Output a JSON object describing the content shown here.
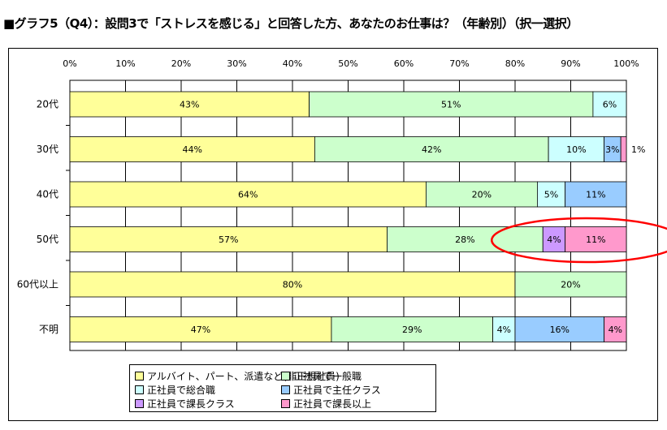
{
  "title": "■グラフ5（Q4）：設問3で「ストレスを感じる」と回答した方、あなたのお仕事は？（年齢別）（択一選択）",
  "chart_data": {
    "type": "bar",
    "orientation": "horizontal",
    "stacked": "percent",
    "categories": [
      "20代",
      "30代",
      "40代",
      "50代",
      "60代以上",
      "不明"
    ],
    "x_ticks": [
      "0%",
      "10%",
      "20%",
      "30%",
      "40%",
      "50%",
      "60%",
      "70%",
      "80%",
      "90%",
      "100%"
    ],
    "xlim": [
      0,
      100
    ],
    "series": [
      {
        "name": "アルバイト、パート、派遣など(非正規社員)",
        "color": "#ffff99",
        "values": [
          43,
          44,
          64,
          57,
          80,
          47
        ],
        "labels": [
          "43%",
          "44%",
          "64%",
          "57%",
          "80%",
          "47%"
        ]
      },
      {
        "name": "正社員で一般職",
        "color": "#ccffcc",
        "values": [
          51,
          42,
          20,
          28,
          20,
          29
        ],
        "labels": [
          "51%",
          "42%",
          "20%",
          "28%",
          "20%",
          "29%"
        ]
      },
      {
        "name": "正社員で総合職",
        "color": "#ccffff",
        "values": [
          6,
          10,
          5,
          0,
          0,
          4
        ],
        "labels": [
          "6%",
          "10%",
          "5%",
          "",
          "",
          "4%"
        ]
      },
      {
        "name": "正社員で主任クラス",
        "color": "#99ccff",
        "values": [
          0,
          3,
          11,
          0,
          0,
          16
        ],
        "labels": [
          "",
          "3%",
          "11%",
          "",
          "",
          "16%"
        ]
      },
      {
        "name": "正社員で課長クラス",
        "color": "#cc99ff",
        "values": [
          0,
          0,
          0,
          4,
          0,
          0
        ],
        "labels": [
          "",
          "",
          "",
          "4%",
          "",
          ""
        ]
      },
      {
        "name": "正社員で課長以上",
        "color": "#ff99cc",
        "values": [
          0,
          1,
          0,
          11,
          0,
          4
        ],
        "labels": [
          "",
          "1%",
          "",
          "11%",
          "",
          "4%"
        ]
      }
    ],
    "highlight": {
      "category": "50代",
      "series": [
        "正社員で課長クラス",
        "正社員で課長以上"
      ],
      "color": "#ff0000"
    },
    "grid": true,
    "legend_position": "bottom"
  }
}
